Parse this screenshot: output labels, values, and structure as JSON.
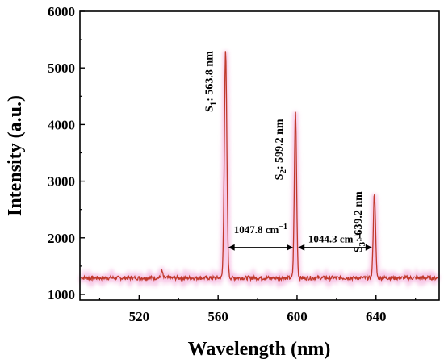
{
  "chart_data": {
    "type": "line",
    "title": "",
    "xlabel": "Wavelength (nm)",
    "ylabel": "Intensity (a.u.)",
    "xlim": [
      490,
      672
    ],
    "ylim": [
      900,
      6000
    ],
    "xticks": [
      520,
      560,
      600,
      640
    ],
    "yticks": [
      1000,
      2000,
      3000,
      4000,
      5000,
      6000
    ],
    "grid": false,
    "line_color": "#c0392b",
    "glow_color": "#f5b8e0",
    "baseline": 1290,
    "series": [
      {
        "name": "",
        "peaks": [
          {
            "x": 531.5,
            "y": 1420,
            "width": 0.6
          },
          {
            "x": 563.8,
            "y": 5280,
            "width": 0.9
          },
          {
            "x": 599.2,
            "y": 4230,
            "width": 0.8
          },
          {
            "x": 639.2,
            "y": 2800,
            "width": 0.8
          }
        ]
      }
    ],
    "peak_labels": [
      {
        "sym": "S",
        "sub": "1",
        "rest": ": 563.8 nm",
        "x": 563.8,
        "y": 5300
      },
      {
        "sym": "S",
        "sub": "2",
        "rest": ": 599.2 nm",
        "x": 599.2,
        "y": 4100
      },
      {
        "sym": "S",
        "sub": "3",
        "rest": ": 639.2 nm",
        "x": 639.2,
        "y": 2820
      }
    ],
    "annotations": [
      {
        "text": "1047.8 cm",
        "sup": "−1",
        "x1": 564.3,
        "x2": 598.8,
        "y_arrow": 1830,
        "y_text": 2080
      },
      {
        "text": "1044.3 cm",
        "sup": "−1",
        "x1": 599.7,
        "x2": 638.8,
        "y_arrow": 1830,
        "y_text": 1920
      }
    ]
  }
}
